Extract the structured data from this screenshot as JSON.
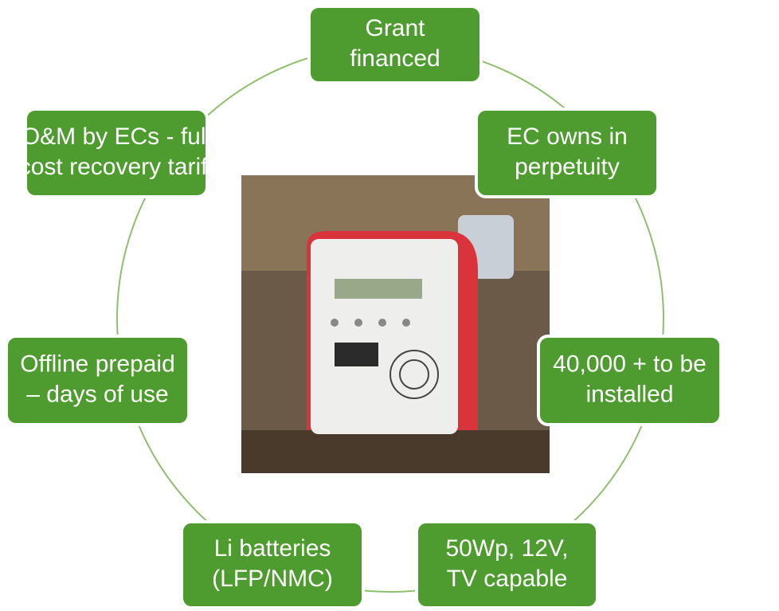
{
  "nodes": [
    {
      "lines": [
        "Grant",
        "financed"
      ]
    },
    {
      "lines": [
        "EC owns in",
        "perpetuity"
      ]
    },
    {
      "lines": [
        "40,000 + to be",
        "installed"
      ]
    },
    {
      "lines": [
        "50Wp, 12V,",
        "TV capable"
      ]
    },
    {
      "lines": [
        "Li batteries",
        "(LFP/NMC)"
      ]
    },
    {
      "lines": [
        "Offline prepaid",
        "– days of use"
      ]
    },
    {
      "lines": [
        "O&M by ECs - full",
        "cost recovery tariff"
      ]
    }
  ]
}
